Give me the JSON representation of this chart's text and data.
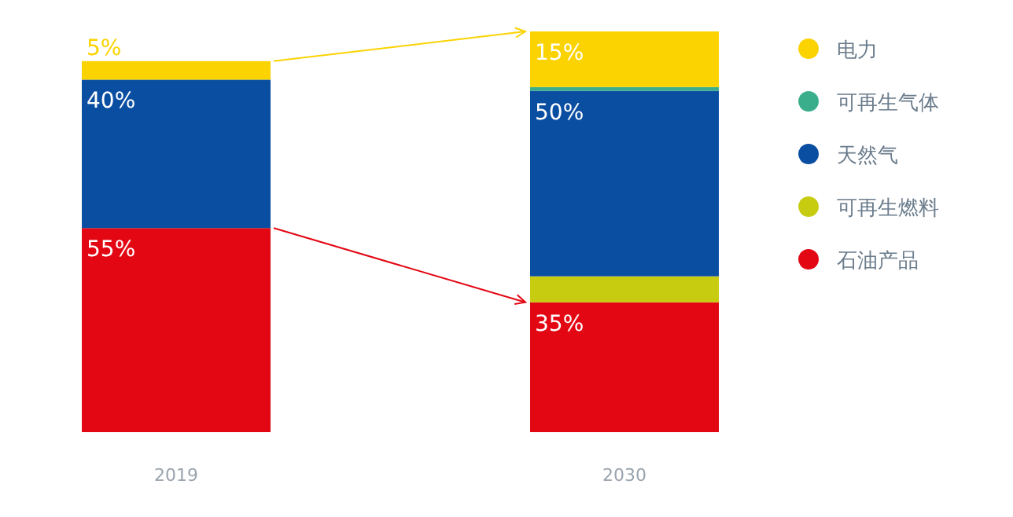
{
  "chart_data": {
    "type": "bar",
    "stacked": true,
    "categories": [
      "2019",
      "2030"
    ],
    "legend": "right",
    "series": [
      {
        "name": "石油产品",
        "color": "#e30613",
        "values": [
          55,
          35
        ],
        "value_labels": [
          "55%",
          "35%"
        ]
      },
      {
        "name": "可再生燃料",
        "color": "#c8cc10",
        "values": [
          null,
          7
        ],
        "value_labels": [
          null,
          null
        ]
      },
      {
        "name": "天然气",
        "color": "#0a4ea2",
        "values": [
          40,
          50
        ],
        "value_labels": [
          "40%",
          "50%"
        ]
      },
      {
        "name": "可再生气体",
        "color": "#3aae8a",
        "values": [
          null,
          1
        ],
        "value_labels": [
          null,
          null
        ]
      },
      {
        "name": "电力",
        "color": "#fbd300",
        "values": [
          5,
          15
        ],
        "value_labels": [
          "5%",
          "15%"
        ]
      }
    ]
  }
}
